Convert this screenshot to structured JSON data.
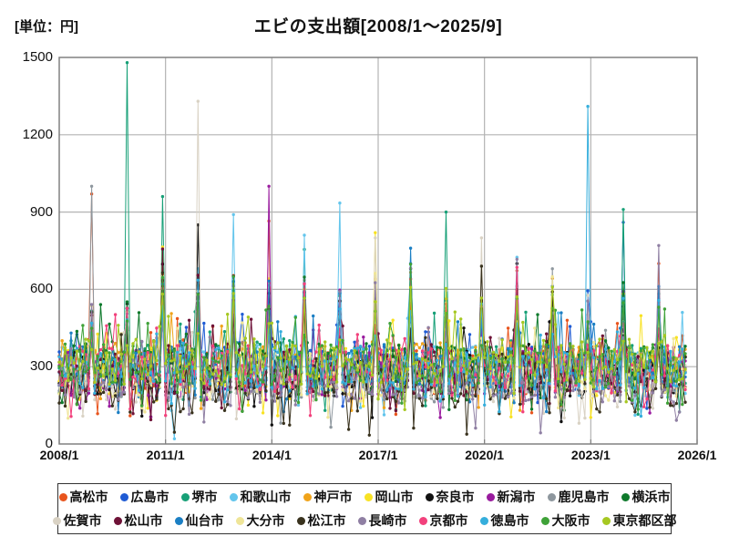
{
  "page": {
    "unit_label": "[単位：円]",
    "title": "エビの支出額[2008/1～2025/9]"
  },
  "chart_data": {
    "type": "line",
    "title": "エビの支出額[2008/1～2025/9]",
    "ylabel_unit": "円",
    "x_start": "2008/1",
    "x_end": "2025/9",
    "n_points": 213,
    "point_interval": "monthly",
    "x_axis_ticks": [
      "2008/1",
      "2011/1",
      "2014/1",
      "2017/1",
      "2020/1",
      "2023/1",
      "2026/1"
    ],
    "x_axis_tick_month_index": [
      0,
      36,
      72,
      108,
      144,
      180,
      216
    ],
    "y_ticks": [
      0,
      300,
      600,
      900,
      1200,
      1500
    ],
    "ylim": [
      0,
      1500
    ],
    "grid": true,
    "grid_color": "#b3b3b3",
    "axis_border_color": "#808080",
    "legend_position": "bottom",
    "marker": "circle",
    "series": [
      {
        "name": "高松市",
        "color": "#E8541D",
        "base": 285
      },
      {
        "name": "広島市",
        "color": "#1F5BD4",
        "base": 300
      },
      {
        "name": "堺市",
        "color": "#17A077",
        "base": 305
      },
      {
        "name": "和歌山市",
        "color": "#63C5EC",
        "base": 290
      },
      {
        "name": "神戸市",
        "color": "#F0A31A",
        "base": 310
      },
      {
        "name": "岡山市",
        "color": "#F8E224",
        "base": 280
      },
      {
        "name": "奈良市",
        "color": "#111111",
        "base": 270
      },
      {
        "name": "新潟市",
        "color": "#991B9E",
        "base": 265
      },
      {
        "name": "鹿児島市",
        "color": "#8E979E",
        "base": 250
      },
      {
        "name": "横浜市",
        "color": "#0F7A2C",
        "base": 315
      },
      {
        "name": "佐賀市",
        "color": "#D9D2C4",
        "base": 255
      },
      {
        "name": "松山市",
        "color": "#6E1237",
        "base": 275
      },
      {
        "name": "仙台市",
        "color": "#1B7FC4",
        "base": 285
      },
      {
        "name": "大分市",
        "color": "#EFE598",
        "base": 260
      },
      {
        "name": "松江市",
        "color": "#39321E",
        "base": 215
      },
      {
        "name": "長崎市",
        "color": "#8F7FA3",
        "base": 245
      },
      {
        "name": "京都市",
        "color": "#F2417C",
        "base": 300
      },
      {
        "name": "徳島市",
        "color": "#35AEDC",
        "base": 290
      },
      {
        "name": "大阪市",
        "color": "#3FA238",
        "base": 310
      },
      {
        "name": "東京都区部",
        "color": "#A6C822",
        "base": 320
      }
    ],
    "seasonality_note": "annual December spikes, typical range 450-700",
    "baseline_range": [
      130,
      550
    ],
    "notable_points": [
      {
        "series": "鹿児島市",
        "x": "2008/12",
        "y": 1000
      },
      {
        "series": "高松市",
        "x": "2008/12",
        "y": 970
      },
      {
        "series": "堺市",
        "x": "2009/12",
        "y": 1480
      },
      {
        "series": "堺市",
        "x": "2010/12",
        "y": 960
      },
      {
        "series": "和歌山市",
        "x": "2011/3",
        "y": 130
      },
      {
        "series": "和歌山市",
        "x": "2011/4",
        "y": 20
      },
      {
        "series": "佐賀市",
        "x": "2011/12",
        "y": 1330
      },
      {
        "series": "奈良市",
        "x": "2011/12",
        "y": 850
      },
      {
        "series": "和歌山市",
        "x": "2012/12",
        "y": 890
      },
      {
        "series": "新潟市",
        "x": "2013/12",
        "y": 1000
      },
      {
        "series": "高松市",
        "x": "2013/12",
        "y": 865
      },
      {
        "series": "和歌山市",
        "x": "2014/12",
        "y": 810
      },
      {
        "series": "堺市",
        "x": "2014/12",
        "y": 755
      },
      {
        "series": "和歌山市",
        "x": "2015/12",
        "y": 935
      },
      {
        "series": "岡山市",
        "x": "2016/12",
        "y": 820
      },
      {
        "series": "佐賀市",
        "x": "2016/12",
        "y": 800
      },
      {
        "series": "仙台市",
        "x": "2017/12",
        "y": 760
      },
      {
        "series": "堺市",
        "x": "2018/12",
        "y": 900
      },
      {
        "series": "佐賀市",
        "x": "2019/12",
        "y": 800
      },
      {
        "series": "松江市",
        "x": "2019/12",
        "y": 690
      },
      {
        "series": "奈良市",
        "x": "2020/12",
        "y": 700
      },
      {
        "series": "鹿児島市",
        "x": "2021/12",
        "y": 680
      },
      {
        "series": "徳島市",
        "x": "2022/12",
        "y": 1310
      },
      {
        "series": "堺市",
        "x": "2023/12",
        "y": 910
      },
      {
        "series": "広島市",
        "x": "2023/12",
        "y": 860
      },
      {
        "series": "長崎市",
        "x": "2024/12",
        "y": 770
      },
      {
        "series": "高松市",
        "x": "2024/12",
        "y": 700
      }
    ]
  }
}
